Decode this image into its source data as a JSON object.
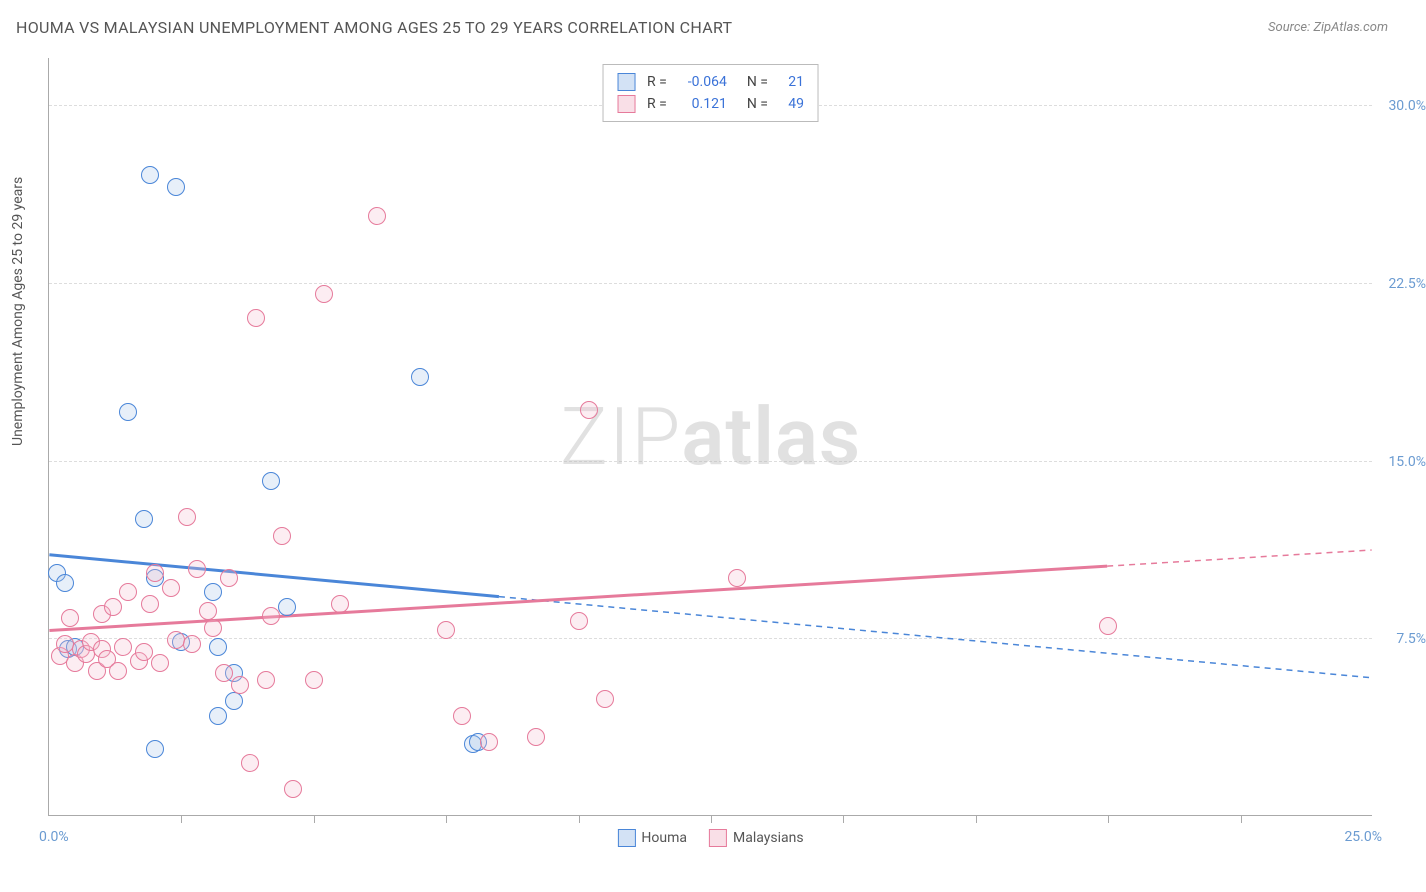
{
  "title": "HOUMA VS MALAYSIAN UNEMPLOYMENT AMONG AGES 25 TO 29 YEARS CORRELATION CHART",
  "source_prefix": "Source: ",
  "source_name": "ZipAtlas.com",
  "y_axis_title": "Unemployment Among Ages 25 to 29 years",
  "watermark_light": "ZIP",
  "watermark_bold": "atlas",
  "chart": {
    "type": "scatter",
    "background_color": "#ffffff",
    "grid_color": "#dddddd",
    "axis_color": "#aaaaaa",
    "label_color": "#6b9bd1",
    "xlim": [
      0,
      25
    ],
    "ylim": [
      0,
      32
    ],
    "x_ticks": [
      2.5,
      5.0,
      7.5,
      10.0,
      12.5,
      15.0,
      17.5,
      20.0,
      22.5
    ],
    "x_labels": {
      "min": "0.0%",
      "max": "25.0%"
    },
    "y_gridlines": [
      7.5,
      15.0,
      22.5,
      30.0
    ],
    "y_labels": [
      "7.5%",
      "15.0%",
      "22.5%",
      "30.0%"
    ],
    "point_radius": 9,
    "point_stroke_width": 1.5,
    "point_fill_opacity": 0.28,
    "regression_line_width": 3,
    "regression_dash": "6,5"
  },
  "series": [
    {
      "key": "houma",
      "label": "Houma",
      "color_stroke": "#4a86d8",
      "color_fill": "#a8c6eb",
      "r_label": "R =",
      "r_value": "-0.064",
      "n_label": "N =",
      "n_value": "21",
      "regression": {
        "y_at_x0": 11.0,
        "y_at_x25": 5.8,
        "solid_until_x": 8.5
      },
      "points": [
        [
          0.15,
          10.2
        ],
        [
          0.3,
          9.8
        ],
        [
          0.35,
          7.0
        ],
        [
          0.5,
          7.1
        ],
        [
          1.5,
          17.0
        ],
        [
          1.8,
          12.5
        ],
        [
          1.9,
          27.0
        ],
        [
          2.0,
          10.0
        ],
        [
          2.0,
          2.8
        ],
        [
          2.4,
          26.5
        ],
        [
          2.5,
          7.3
        ],
        [
          3.1,
          9.4
        ],
        [
          3.2,
          7.1
        ],
        [
          3.2,
          4.2
        ],
        [
          3.5,
          6.0
        ],
        [
          3.5,
          4.8
        ],
        [
          4.2,
          14.1
        ],
        [
          4.5,
          8.8
        ],
        [
          7.0,
          18.5
        ],
        [
          8.0,
          3.0
        ],
        [
          8.1,
          3.1
        ]
      ]
    },
    {
      "key": "malaysians",
      "label": "Malaysians",
      "color_stroke": "#e67a9b",
      "color_fill": "#f4c0d0",
      "r_label": "R =",
      "r_value": "0.121",
      "n_label": "N =",
      "n_value": "49",
      "regression": {
        "y_at_x0": 7.8,
        "y_at_x25": 11.2,
        "solid_until_x": 20.0
      },
      "points": [
        [
          0.2,
          6.7
        ],
        [
          0.3,
          7.2
        ],
        [
          0.4,
          8.3
        ],
        [
          0.5,
          6.4
        ],
        [
          0.6,
          7.0
        ],
        [
          0.7,
          6.8
        ],
        [
          0.8,
          7.3
        ],
        [
          0.9,
          6.1
        ],
        [
          1.0,
          7.0
        ],
        [
          1.0,
          8.5
        ],
        [
          1.1,
          6.6
        ],
        [
          1.2,
          8.8
        ],
        [
          1.3,
          6.1
        ],
        [
          1.4,
          7.1
        ],
        [
          1.5,
          9.4
        ],
        [
          1.7,
          6.5
        ],
        [
          1.8,
          6.9
        ],
        [
          1.9,
          8.9
        ],
        [
          2.0,
          10.2
        ],
        [
          2.1,
          6.4
        ],
        [
          2.3,
          9.6
        ],
        [
          2.4,
          7.4
        ],
        [
          2.6,
          12.6
        ],
        [
          2.7,
          7.2
        ],
        [
          2.8,
          10.4
        ],
        [
          3.0,
          8.6
        ],
        [
          3.1,
          7.9
        ],
        [
          3.3,
          6.0
        ],
        [
          3.4,
          10.0
        ],
        [
          3.6,
          5.5
        ],
        [
          3.8,
          2.2
        ],
        [
          3.9,
          21.0
        ],
        [
          4.1,
          5.7
        ],
        [
          4.2,
          8.4
        ],
        [
          4.4,
          11.8
        ],
        [
          4.6,
          1.1
        ],
        [
          5.0,
          5.7
        ],
        [
          5.2,
          22.0
        ],
        [
          5.5,
          8.9
        ],
        [
          6.2,
          25.3
        ],
        [
          7.5,
          7.8
        ],
        [
          7.8,
          4.2
        ],
        [
          8.3,
          3.1
        ],
        [
          9.2,
          3.3
        ],
        [
          10.0,
          8.2
        ],
        [
          10.2,
          17.1
        ],
        [
          10.5,
          4.9
        ],
        [
          13.0,
          10.0
        ],
        [
          20.0,
          8.0
        ]
      ]
    }
  ],
  "legend_bottom": [
    {
      "key": "houma",
      "label": "Houma"
    },
    {
      "key": "malaysians",
      "label": "Malaysians"
    }
  ]
}
